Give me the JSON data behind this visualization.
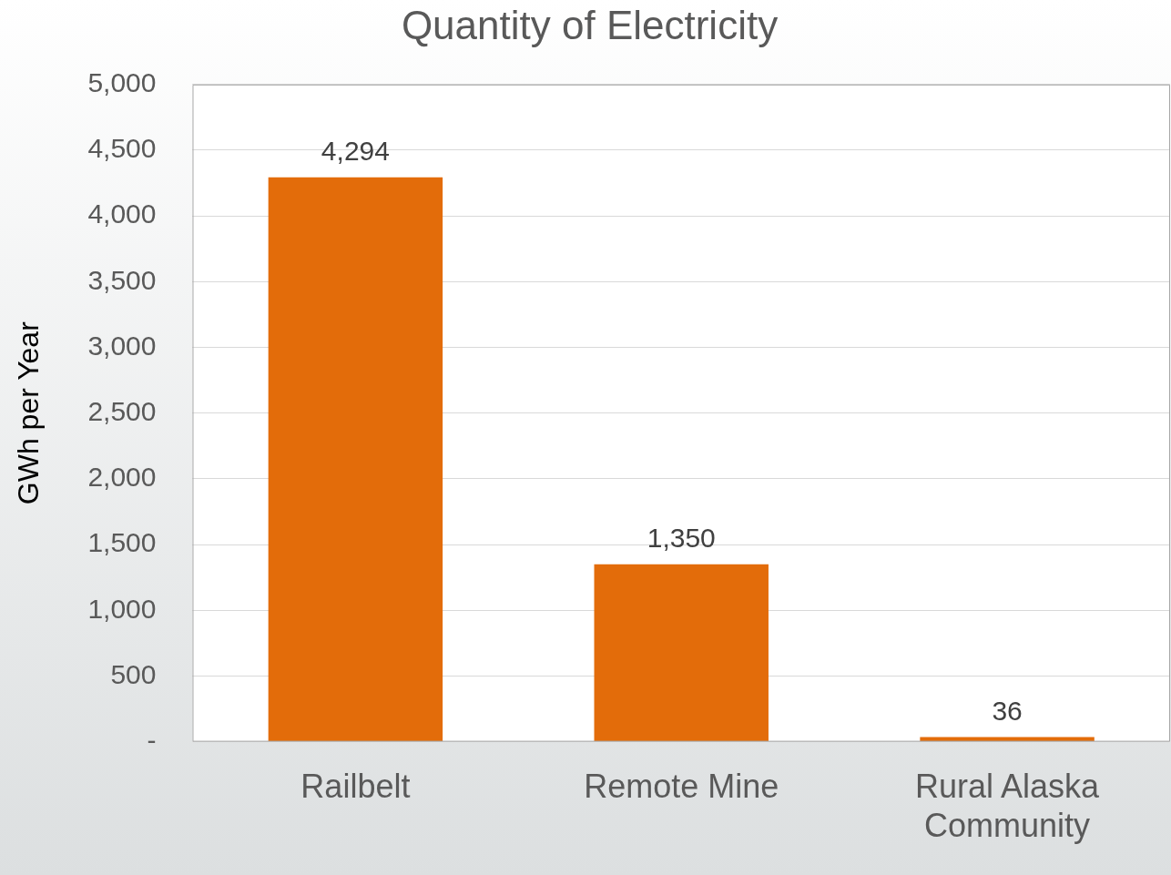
{
  "chart_data": {
    "type": "bar",
    "title": "Quantity of Electricity",
    "ylabel": "GWh per Year",
    "categories": [
      "Railbelt",
      "Remote Mine",
      "Rural Alaska Community"
    ],
    "values": [
      4294,
      1350,
      36
    ],
    "color": "#e36c0a",
    "value_labels": [
      "4,294",
      "1,350",
      "36"
    ],
    "ylim": [
      0,
      5000
    ],
    "yticks": [
      {
        "value": 0,
        "label": "-"
      },
      500,
      {
        "value": 1000,
        "label": "1,000"
      },
      {
        "value": 1500,
        "label": "1,500"
      },
      {
        "value": 2000,
        "label": "2,000"
      },
      {
        "value": 2500,
        "label": "2,500"
      },
      {
        "value": 3000,
        "label": "3,000"
      },
      {
        "value": 3500,
        "label": "3,500"
      },
      {
        "value": 4000,
        "label": "4,000"
      },
      {
        "value": 4500,
        "label": "4,500"
      },
      {
        "value": 5000,
        "label": "5,000"
      }
    ],
    "grid": "y",
    "legend": false
  }
}
